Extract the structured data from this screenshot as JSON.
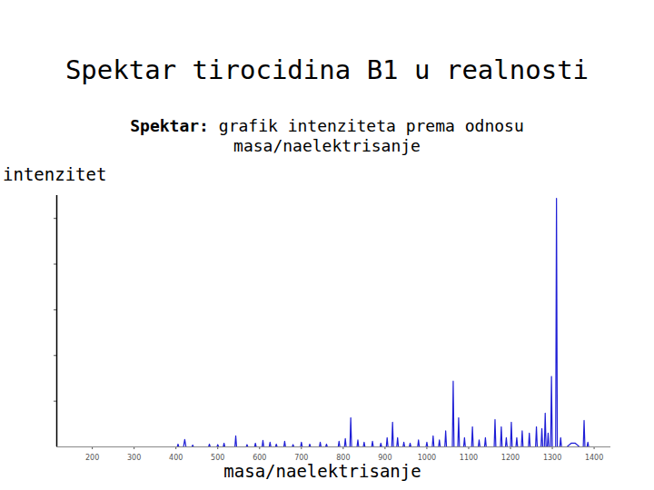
{
  "chart_data": {
    "type": "line",
    "title": "Spektar tirocidina B1 u realnosti",
    "subtitle": "Spektar: grafik intenziteta prema odnosu masa/naelektrisanje",
    "x_label": "masa/naelektrisanje",
    "y_label": "intenzitet",
    "color": "#1f1fd6",
    "xlim": [
      115,
      1440
    ],
    "xticks": [
      200,
      300,
      400,
      500,
      600,
      700,
      800,
      900,
      1000,
      1100,
      1200,
      1300,
      1400
    ],
    "ylim": [
      0,
      5.5
    ],
    "yticks": [
      1,
      2,
      3,
      4,
      5
    ],
    "tick_labels": "x",
    "grid": false,
    "x": [
      395,
      403,
      405,
      407,
      418,
      421,
      424,
      438,
      440,
      442,
      478,
      480,
      482,
      498,
      500,
      502,
      513,
      515,
      517,
      541,
      543,
      545,
      568,
      570,
      572,
      588,
      590,
      592,
      606,
      608,
      610,
      623,
      625,
      627,
      638,
      640,
      642,
      658,
      660,
      662,
      678,
      680,
      682,
      698,
      700,
      702,
      718,
      720,
      722,
      743,
      745,
      747,
      758,
      760,
      762,
      788,
      790,
      792,
      803,
      805,
      807,
      816,
      818,
      820,
      833,
      835,
      837,
      848,
      850,
      852,
      868,
      870,
      872,
      888,
      890,
      892,
      903,
      905,
      907,
      916,
      918,
      920,
      928,
      930,
      932,
      943,
      945,
      947,
      958,
      960,
      962,
      978,
      980,
      982,
      998,
      1000,
      1002,
      1013,
      1015,
      1017,
      1028,
      1030,
      1032,
      1043,
      1045,
      1047,
      1061,
      1063,
      1065,
      1074,
      1076,
      1078,
      1088,
      1090,
      1092,
      1107,
      1109,
      1111,
      1123,
      1125,
      1127,
      1138,
      1140,
      1142,
      1161,
      1163,
      1165,
      1176,
      1178,
      1180,
      1188,
      1190,
      1192,
      1200,
      1202,
      1204,
      1213,
      1215,
      1217,
      1226,
      1228,
      1230,
      1243,
      1245,
      1247,
      1260,
      1262,
      1264,
      1273,
      1275,
      1277,
      1281,
      1283,
      1285,
      1288,
      1290,
      1292,
      1296,
      1298,
      1300,
      1308,
      1310,
      1312,
      1318,
      1320,
      1322,
      1335,
      1345,
      1355,
      1365,
      1374,
      1376,
      1378,
      1383,
      1385,
      1387,
      1395
    ],
    "values": [
      0,
      0,
      0.06,
      0,
      0,
      0.16,
      0,
      0,
      0.04,
      0,
      0,
      0.06,
      0,
      0,
      0.05,
      0,
      0,
      0.08,
      0,
      0,
      0.24,
      0,
      0,
      0.05,
      0,
      0,
      0.08,
      0,
      0,
      0.14,
      0,
      0,
      0.1,
      0,
      0,
      0.06,
      0,
      0,
      0.12,
      0,
      0,
      0.05,
      0,
      0,
      0.1,
      0,
      0,
      0.06,
      0,
      0,
      0.1,
      0,
      0,
      0.06,
      0,
      0,
      0.12,
      0,
      0,
      0.18,
      0,
      0,
      0.64,
      0,
      0,
      0.15,
      0,
      0,
      0.1,
      0,
      0,
      0.12,
      0,
      0,
      0.08,
      0,
      0,
      0.2,
      0,
      0,
      0.54,
      0,
      0,
      0.2,
      0,
      0,
      0.1,
      0,
      0,
      0.08,
      0,
      0,
      0.15,
      0,
      0,
      0.1,
      0,
      0,
      0.24,
      0,
      0,
      0.15,
      0,
      0,
      0.35,
      0,
      0,
      1.44,
      0,
      0,
      0.64,
      0,
      0,
      0.2,
      0,
      0,
      0.44,
      0,
      0,
      0.15,
      0,
      0,
      0.2,
      0,
      0,
      0.6,
      0,
      0,
      0.44,
      0,
      0,
      0.2,
      0,
      0,
      0.54,
      0,
      0,
      0.2,
      0,
      0,
      0.35,
      0,
      0,
      0.3,
      0,
      0,
      0.44,
      0,
      0,
      0.4,
      0,
      0,
      0.74,
      0,
      0,
      0.3,
      0,
      0,
      1.54,
      0,
      0,
      5.44,
      0,
      0,
      0.2,
      0,
      0,
      0.08,
      0.08,
      0,
      0,
      0.58,
      0,
      0,
      0.1,
      0,
      0
    ]
  }
}
